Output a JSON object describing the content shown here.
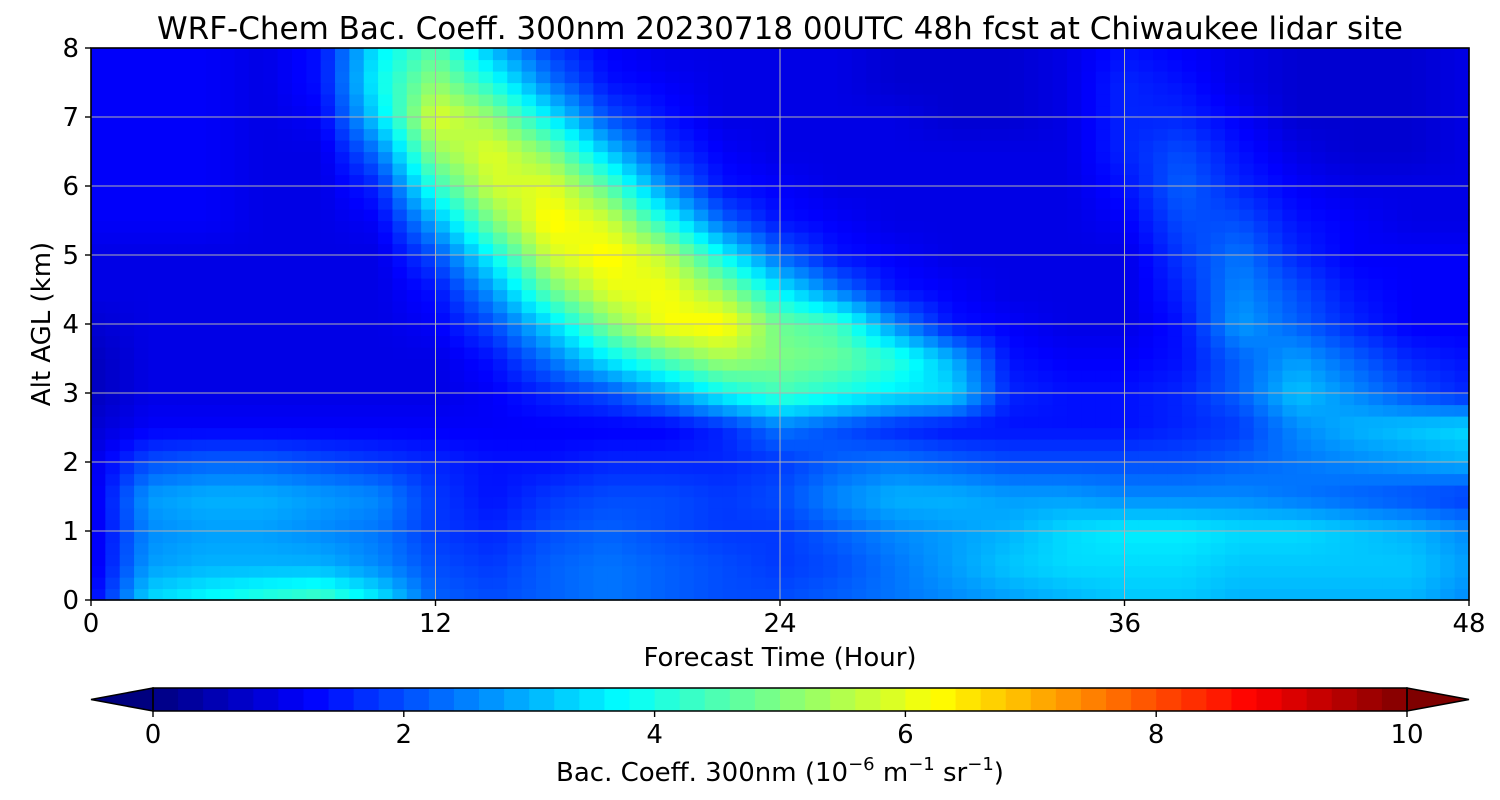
{
  "chart_data": {
    "type": "heatmap",
    "title": "WRF-Chem Bac. Coeff. 300nm  20230718 00UTC 48h fcst at Chiwaukee lidar site",
    "xlabel": "Forecast Time (Hour)",
    "ylabel": "Alt AGL (km)",
    "xlim": [
      0,
      48
    ],
    "ylim": [
      0,
      8
    ],
    "x_ticks": [
      "0",
      "12",
      "24",
      "36",
      "48"
    ],
    "y_ticks": [
      "0",
      "1",
      "2",
      "3",
      "4",
      "5",
      "6",
      "7",
      "8"
    ],
    "grid": true,
    "colorbar": {
      "label_main": "Bac. Coeff. 300nm  (10",
      "label_exp1": "−6",
      "label_mid": " m",
      "label_exp2": "−1",
      "label_mid2": " sr",
      "label_exp3": "−1",
      "label_end": ")",
      "range": [
        0,
        10
      ],
      "ticks": [
        "0",
        "2",
        "4",
        "6",
        "8",
        "10"
      ],
      "colormap": "jet",
      "extend": "both",
      "orientation": "horizontal"
    },
    "x": [
      0,
      2,
      4,
      6,
      8,
      10,
      12,
      14,
      16,
      18,
      20,
      22,
      24,
      26,
      28,
      30,
      32,
      34,
      36,
      38,
      40,
      42,
      44,
      46,
      48
    ],
    "y": [
      0,
      0.5,
      1,
      1.5,
      2,
      2.5,
      3,
      3.5,
      4,
      4.5,
      5,
      5.5,
      6,
      6.5,
      7,
      7.5,
      8
    ],
    "z": [
      [
        1.2,
        3.4,
        3.8,
        4.2,
        4.5,
        3.6,
        2.2,
        2.0,
        2.2,
        2.4,
        2.2,
        2.0,
        2.0,
        2.2,
        2.4,
        2.6,
        2.8,
        3.0,
        3.2,
        3.2,
        3.0,
        3.0,
        3.0,
        3.0,
        2.6
      ],
      [
        1.0,
        2.8,
        3.0,
        3.0,
        3.0,
        2.6,
        2.0,
        1.8,
        2.2,
        2.4,
        2.2,
        2.0,
        1.8,
        2.0,
        2.4,
        2.8,
        3.2,
        3.4,
        3.4,
        3.4,
        3.2,
        3.2,
        3.2,
        3.2,
        2.8
      ],
      [
        1.0,
        2.6,
        2.8,
        2.8,
        2.6,
        2.4,
        1.8,
        1.6,
        2.0,
        2.2,
        2.0,
        1.8,
        1.8,
        2.2,
        2.6,
        2.8,
        3.0,
        3.4,
        3.6,
        3.6,
        3.4,
        3.4,
        3.2,
        3.0,
        2.6
      ],
      [
        1.0,
        2.8,
        3.0,
        3.0,
        2.8,
        2.6,
        1.8,
        1.4,
        1.8,
        2.0,
        2.0,
        1.8,
        2.0,
        2.6,
        3.0,
        3.0,
        2.8,
        2.8,
        2.6,
        2.6,
        2.6,
        2.4,
        2.2,
        2.0,
        1.8
      ],
      [
        1.0,
        2.0,
        2.2,
        2.2,
        2.0,
        1.8,
        1.6,
        1.4,
        1.4,
        1.6,
        1.6,
        1.6,
        1.8,
        2.2,
        2.4,
        2.2,
        2.0,
        2.0,
        2.0,
        2.0,
        2.2,
        2.4,
        2.6,
        2.8,
        3.0
      ],
      [
        0.8,
        1.2,
        1.2,
        1.2,
        1.2,
        1.2,
        1.2,
        1.2,
        1.2,
        1.2,
        1.2,
        1.6,
        2.4,
        2.0,
        1.6,
        1.4,
        1.4,
        1.4,
        1.4,
        1.6,
        1.8,
        2.6,
        3.0,
        3.2,
        3.4
      ],
      [
        0.6,
        1.0,
        1.0,
        1.0,
        1.0,
        1.0,
        1.0,
        1.2,
        1.6,
        2.0,
        2.8,
        3.8,
        4.4,
        4.0,
        3.6,
        3.4,
        1.6,
        1.4,
        1.4,
        1.6,
        2.2,
        3.2,
        2.6,
        2.0,
        1.6
      ],
      [
        0.6,
        1.0,
        1.0,
        1.0,
        1.0,
        1.0,
        1.0,
        1.4,
        2.4,
        3.6,
        4.6,
        5.4,
        5.0,
        4.8,
        4.2,
        3.0,
        1.4,
        1.2,
        1.2,
        1.4,
        2.2,
        2.8,
        2.2,
        1.6,
        1.4
      ],
      [
        0.8,
        1.0,
        1.0,
        1.0,
        1.0,
        1.0,
        1.2,
        2.0,
        3.4,
        5.0,
        6.2,
        6.4,
        4.8,
        4.4,
        2.6,
        1.4,
        1.2,
        1.0,
        1.0,
        1.4,
        2.8,
        2.2,
        1.6,
        1.2,
        1.2
      ],
      [
        1.0,
        1.0,
        1.0,
        1.0,
        1.0,
        1.0,
        1.4,
        2.8,
        4.8,
        6.0,
        6.2,
        5.2,
        3.6,
        2.4,
        1.4,
        1.2,
        1.0,
        1.0,
        1.0,
        1.6,
        2.6,
        2.0,
        1.4,
        1.2,
        1.2
      ],
      [
        1.0,
        1.0,
        1.0,
        1.0,
        1.0,
        1.0,
        2.0,
        3.8,
        5.8,
        6.4,
        5.6,
        3.8,
        2.2,
        1.4,
        1.2,
        1.0,
        1.0,
        1.0,
        1.0,
        1.8,
        2.4,
        1.6,
        1.2,
        1.2,
        1.2
      ],
      [
        1.2,
        1.2,
        1.2,
        1.0,
        1.0,
        1.2,
        3.0,
        5.0,
        6.4,
        5.8,
        4.0,
        2.2,
        1.4,
        1.2,
        1.0,
        1.0,
        1.0,
        1.0,
        1.2,
        2.0,
        2.0,
        1.4,
        1.2,
        1.0,
        1.0
      ],
      [
        1.2,
        1.2,
        1.2,
        1.0,
        1.0,
        1.6,
        4.2,
        5.8,
        6.0,
        4.6,
        2.6,
        1.4,
        1.2,
        1.0,
        1.0,
        1.0,
        1.0,
        1.0,
        1.4,
        2.2,
        1.6,
        1.2,
        1.0,
        1.0,
        1.0
      ],
      [
        1.2,
        1.2,
        1.2,
        1.0,
        1.0,
        2.4,
        5.2,
        6.0,
        5.0,
        3.2,
        1.8,
        1.2,
        1.0,
        1.0,
        1.0,
        1.0,
        1.0,
        1.0,
        1.6,
        2.0,
        1.4,
        1.0,
        0.8,
        0.8,
        1.0
      ],
      [
        1.2,
        1.2,
        1.2,
        1.0,
        1.2,
        3.4,
        6.0,
        5.2,
        3.6,
        2.0,
        1.4,
        1.0,
        1.0,
        1.0,
        1.0,
        0.8,
        0.8,
        1.0,
        1.6,
        1.6,
        1.2,
        0.8,
        0.8,
        0.8,
        1.0
      ],
      [
        1.2,
        1.2,
        1.2,
        1.0,
        1.4,
        3.8,
        5.2,
        4.0,
        2.4,
        1.4,
        1.2,
        1.0,
        1.0,
        1.0,
        0.8,
        0.8,
        0.8,
        1.0,
        1.6,
        1.4,
        1.0,
        0.8,
        0.8,
        0.8,
        1.0
      ],
      [
        1.2,
        1.2,
        1.2,
        1.0,
        1.4,
        3.6,
        4.6,
        3.0,
        1.8,
        1.2,
        1.0,
        1.0,
        1.0,
        1.0,
        0.8,
        0.8,
        0.8,
        1.0,
        1.4,
        1.2,
        1.0,
        0.8,
        0.8,
        0.8,
        1.0
      ]
    ]
  }
}
